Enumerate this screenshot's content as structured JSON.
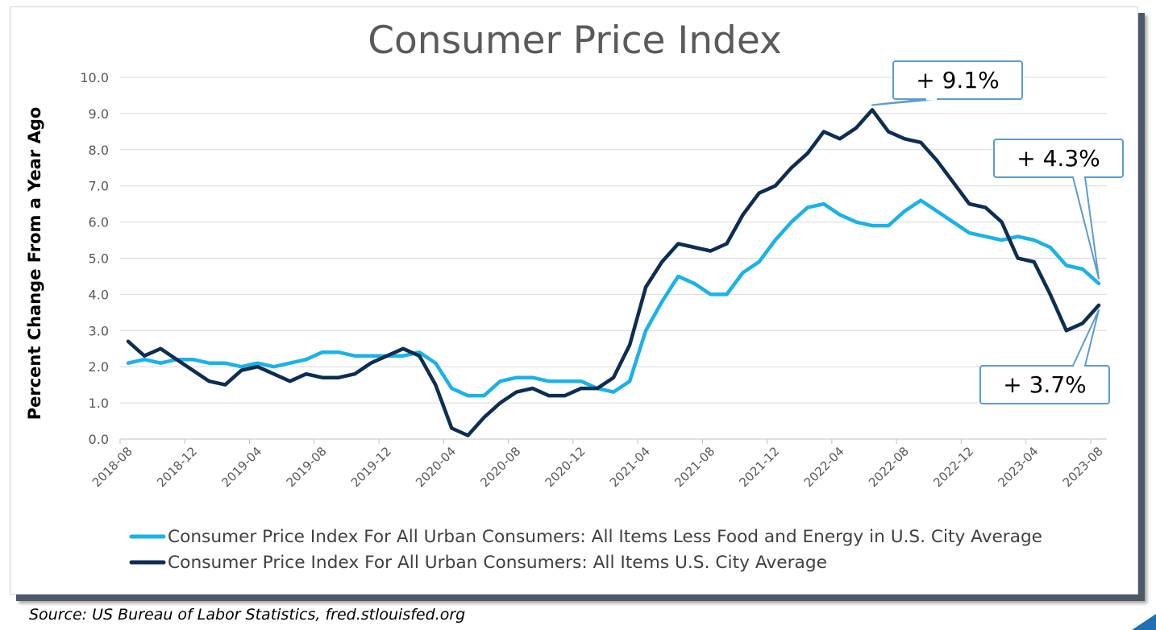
{
  "source": "Source: US Bureau of Labor Statistics, fred.stlouisfed.org",
  "chart_data": {
    "type": "line",
    "title": "Consumer Price Index",
    "xlabel": "",
    "ylabel": "Percent Change From a Year Ago",
    "ylim": [
      0,
      10
    ],
    "y_ticks": [
      "0.0",
      "1.0",
      "2.0",
      "3.0",
      "4.0",
      "5.0",
      "6.0",
      "7.0",
      "8.0",
      "9.0",
      "10.0"
    ],
    "x_ticks": [
      "2018-08",
      "2018-12",
      "2019-04",
      "2019-08",
      "2019-12",
      "2020-04",
      "2020-08",
      "2020-12",
      "2021-04",
      "2021-08",
      "2021-12",
      "2022-04",
      "2022-08",
      "2022-12",
      "2023-04",
      "2023-08"
    ],
    "grid": "horizontal",
    "legend_position": "bottom",
    "x": [
      "2018-08",
      "2018-09",
      "2018-10",
      "2018-11",
      "2018-12",
      "2019-01",
      "2019-02",
      "2019-03",
      "2019-04",
      "2019-05",
      "2019-06",
      "2019-07",
      "2019-08",
      "2019-09",
      "2019-10",
      "2019-11",
      "2019-12",
      "2020-01",
      "2020-02",
      "2020-03",
      "2020-04",
      "2020-05",
      "2020-06",
      "2020-07",
      "2020-08",
      "2020-09",
      "2020-10",
      "2020-11",
      "2020-12",
      "2021-01",
      "2021-02",
      "2021-03",
      "2021-04",
      "2021-05",
      "2021-06",
      "2021-07",
      "2021-08",
      "2021-09",
      "2021-10",
      "2021-11",
      "2021-12",
      "2022-01",
      "2022-02",
      "2022-03",
      "2022-04",
      "2022-05",
      "2022-06",
      "2022-07",
      "2022-08",
      "2022-09",
      "2022-10",
      "2022-11",
      "2022-12",
      "2023-01",
      "2023-02",
      "2023-03",
      "2023-04",
      "2023-05",
      "2023-06",
      "2023-07",
      "2023-08"
    ],
    "series": [
      {
        "name": "Consumer Price Index For All Urban Consumers: All Items Less Food and Energy in U.S. City Average",
        "color": "#1ab2e8",
        "values": [
          2.1,
          2.2,
          2.1,
          2.2,
          2.2,
          2.1,
          2.1,
          2.0,
          2.1,
          2.0,
          2.1,
          2.2,
          2.4,
          2.4,
          2.3,
          2.3,
          2.3,
          2.3,
          2.4,
          2.1,
          1.4,
          1.2,
          1.2,
          1.6,
          1.7,
          1.7,
          1.6,
          1.6,
          1.6,
          1.4,
          1.3,
          1.6,
          3.0,
          3.8,
          4.5,
          4.3,
          4.0,
          4.0,
          4.6,
          4.9,
          5.5,
          6.0,
          6.4,
          6.5,
          6.2,
          6.0,
          5.9,
          5.9,
          6.3,
          6.6,
          6.3,
          6.0,
          5.7,
          5.6,
          5.5,
          5.6,
          5.5,
          5.3,
          4.8,
          4.7,
          4.3
        ]
      },
      {
        "name": "Consumer Price Index For All Urban Consumers: All Items U.S. City Average",
        "color": "#0d2d52",
        "values": [
          2.7,
          2.3,
          2.5,
          2.2,
          1.9,
          1.6,
          1.5,
          1.9,
          2.0,
          1.8,
          1.6,
          1.8,
          1.7,
          1.7,
          1.8,
          2.1,
          2.3,
          2.5,
          2.3,
          1.5,
          0.3,
          0.1,
          0.6,
          1.0,
          1.3,
          1.4,
          1.2,
          1.2,
          1.4,
          1.4,
          1.7,
          2.6,
          4.2,
          4.9,
          5.4,
          5.3,
          5.2,
          5.4,
          6.2,
          6.8,
          7.0,
          7.5,
          7.9,
          8.5,
          8.3,
          8.6,
          9.1,
          8.5,
          8.3,
          8.2,
          7.7,
          7.1,
          6.5,
          6.4,
          6.0,
          5.0,
          4.9,
          4.0,
          3.0,
          3.2,
          3.7
        ]
      }
    ],
    "annotations": [
      {
        "text": "+ 9.1%",
        "x": "2022-06",
        "y": 9.1
      },
      {
        "text": "+ 4.3%",
        "x": "2023-08",
        "y": 4.3
      },
      {
        "text": "+ 3.7%",
        "x": "2023-08",
        "y": 3.7
      }
    ]
  }
}
